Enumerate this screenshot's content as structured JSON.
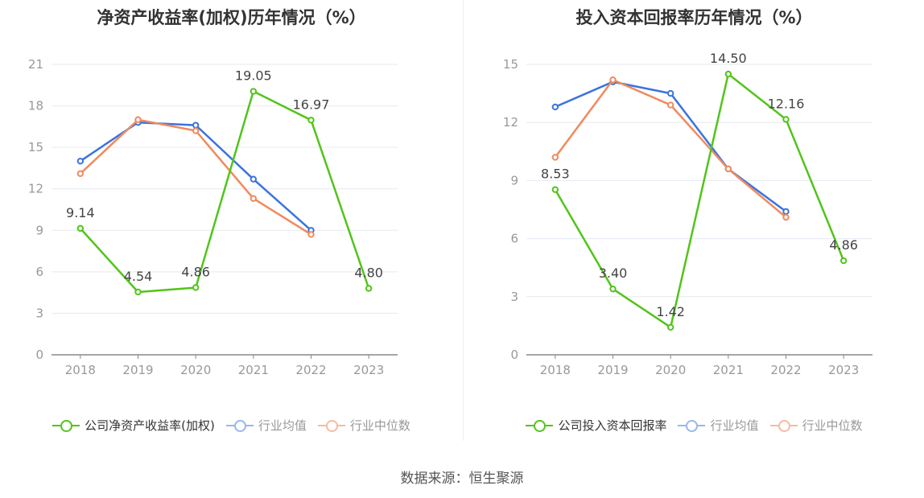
{
  "charts": [
    {
      "title": "净资产收益率(加权)历年情况（%）",
      "legend": [
        "公司净资产收益率(加权)",
        "行业均值",
        "行业中位数"
      ]
    },
    {
      "title": "投入资本回报率历年情况（%）",
      "legend": [
        "公司投入资本回报率",
        "行业均值",
        "行业中位数"
      ]
    }
  ],
  "colors": {
    "company": "#52c41a",
    "avg": "#3b73e0",
    "median": "#f08a5d"
  },
  "source": "数据来源：恒生聚源",
  "chart_data": [
    {
      "type": "line",
      "title": "净资产收益率(加权)历年情况（%）",
      "categories": [
        "2018",
        "2019",
        "2020",
        "2021",
        "2022",
        "2023"
      ],
      "ylim": [
        0,
        21
      ],
      "yticks": [
        0,
        3,
        6,
        9,
        12,
        15,
        18,
        21
      ],
      "grid": true,
      "legend_position": "bottom",
      "series": [
        {
          "name": "公司净资产收益率(加权)",
          "color": "#52c41a",
          "labeled": true,
          "values": [
            9.14,
            4.54,
            4.86,
            19.05,
            16.97,
            4.8
          ],
          "labels": [
            "9.14",
            "4.54",
            "4.86",
            "19.05",
            "16.97",
            "4.80"
          ]
        },
        {
          "name": "行业均值",
          "color": "#3b73e0",
          "labeled": false,
          "values": [
            14.0,
            16.8,
            16.6,
            12.7,
            9.0,
            null
          ]
        },
        {
          "name": "行业中位数",
          "color": "#f08a5d",
          "labeled": false,
          "values": [
            13.1,
            17.0,
            16.2,
            11.3,
            8.7,
            null
          ]
        }
      ]
    },
    {
      "type": "line",
      "title": "投入资本回报率历年情况（%）",
      "categories": [
        "2018",
        "2019",
        "2020",
        "2021",
        "2022",
        "2023"
      ],
      "ylim": [
        0,
        15
      ],
      "yticks": [
        0,
        3,
        6,
        9,
        12,
        15
      ],
      "grid": true,
      "legend_position": "bottom",
      "series": [
        {
          "name": "公司投入资本回报率",
          "color": "#52c41a",
          "labeled": true,
          "values": [
            8.53,
            3.4,
            1.42,
            14.5,
            12.16,
            4.86
          ],
          "labels": [
            "8.53",
            "3.40",
            "1.42",
            "14.50",
            "12.16",
            "4.86"
          ]
        },
        {
          "name": "行业均值",
          "color": "#3b73e0",
          "labeled": false,
          "values": [
            12.8,
            14.1,
            13.5,
            9.6,
            7.4,
            null
          ]
        },
        {
          "name": "行业中位数",
          "color": "#f08a5d",
          "labeled": false,
          "values": [
            10.2,
            14.2,
            12.9,
            9.6,
            7.1,
            null
          ]
        }
      ]
    }
  ]
}
